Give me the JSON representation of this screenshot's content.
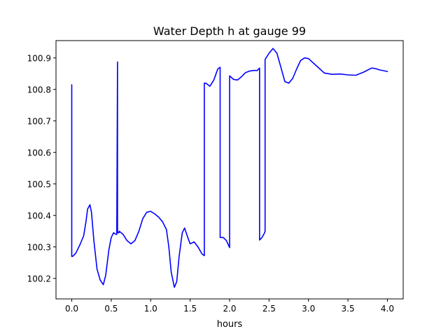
{
  "chart_data": {
    "type": "line",
    "title": "Water Depth h at gauge 99",
    "xlabel": "hours",
    "ylabel": "",
    "xlim": [
      -0.2,
      4.2
    ],
    "ylim": [
      100.135,
      100.955
    ],
    "x_ticks": [
      0.0,
      0.5,
      1.0,
      1.5,
      2.0,
      2.5,
      3.0,
      3.5,
      4.0
    ],
    "x_tick_labels": [
      "0.0",
      "0.5",
      "1.0",
      "1.5",
      "2.0",
      "2.5",
      "3.0",
      "3.5",
      "4.0"
    ],
    "y_ticks": [
      100.2,
      100.3,
      100.4,
      100.5,
      100.6,
      100.7,
      100.8,
      100.9
    ],
    "y_tick_labels": [
      "100.2",
      "100.3",
      "100.4",
      "100.5",
      "100.6",
      "100.7",
      "100.8",
      "100.9"
    ],
    "grid": false,
    "legend": "none",
    "series": [
      {
        "color": "#0000ff",
        "x": [
          0.0,
          0.0,
          0.01,
          0.05,
          0.1,
          0.15,
          0.18,
          0.2,
          0.23,
          0.25,
          0.28,
          0.32,
          0.36,
          0.4,
          0.43,
          0.47,
          0.5,
          0.53,
          0.56,
          0.57,
          0.58,
          0.58,
          0.6,
          0.6,
          0.65,
          0.7,
          0.75,
          0.8,
          0.85,
          0.9,
          0.95,
          1.0,
          1.05,
          1.1,
          1.15,
          1.2,
          1.23,
          1.26,
          1.3,
          1.33,
          1.36,
          1.4,
          1.43,
          1.47,
          1.5,
          1.55,
          1.6,
          1.65,
          1.68,
          1.68,
          1.7,
          1.75,
          1.8,
          1.85,
          1.88,
          1.88,
          1.92,
          1.96,
          2.0,
          2.0,
          2.05,
          2.1,
          2.15,
          2.2,
          2.25,
          2.3,
          2.35,
          2.38,
          2.38,
          2.41,
          2.44,
          2.45,
          2.45,
          2.5,
          2.55,
          2.6,
          2.65,
          2.7,
          2.75,
          2.8,
          2.85,
          2.9,
          2.95,
          3.0,
          3.1,
          3.2,
          3.3,
          3.4,
          3.5,
          3.6,
          3.7,
          3.8,
          3.85,
          3.9,
          4.0
        ],
        "y": [
          100.815,
          100.27,
          100.27,
          100.28,
          100.305,
          100.335,
          100.38,
          100.42,
          100.434,
          100.41,
          100.32,
          100.23,
          100.195,
          100.18,
          100.21,
          100.29,
          100.33,
          100.345,
          100.34,
          100.34,
          100.887,
          100.345,
          100.345,
          100.35,
          100.34,
          100.32,
          100.31,
          100.32,
          100.35,
          100.39,
          100.41,
          100.413,
          100.405,
          100.395,
          100.38,
          100.355,
          100.3,
          100.22,
          100.172,
          100.19,
          100.27,
          100.345,
          100.36,
          100.33,
          100.31,
          100.316,
          100.3,
          100.278,
          100.272,
          100.82,
          100.82,
          100.81,
          100.83,
          100.865,
          100.87,
          100.33,
          100.33,
          100.32,
          100.298,
          100.843,
          100.832,
          100.83,
          100.84,
          100.853,
          100.858,
          100.86,
          100.86,
          100.868,
          100.322,
          100.33,
          100.343,
          100.35,
          100.895,
          100.915,
          100.93,
          100.915,
          100.87,
          100.825,
          100.82,
          100.835,
          100.865,
          100.892,
          100.9,
          100.898,
          100.875,
          100.852,
          100.848,
          100.849,
          100.846,
          100.845,
          100.855,
          100.868,
          100.866,
          100.862,
          100.857
        ]
      }
    ]
  }
}
